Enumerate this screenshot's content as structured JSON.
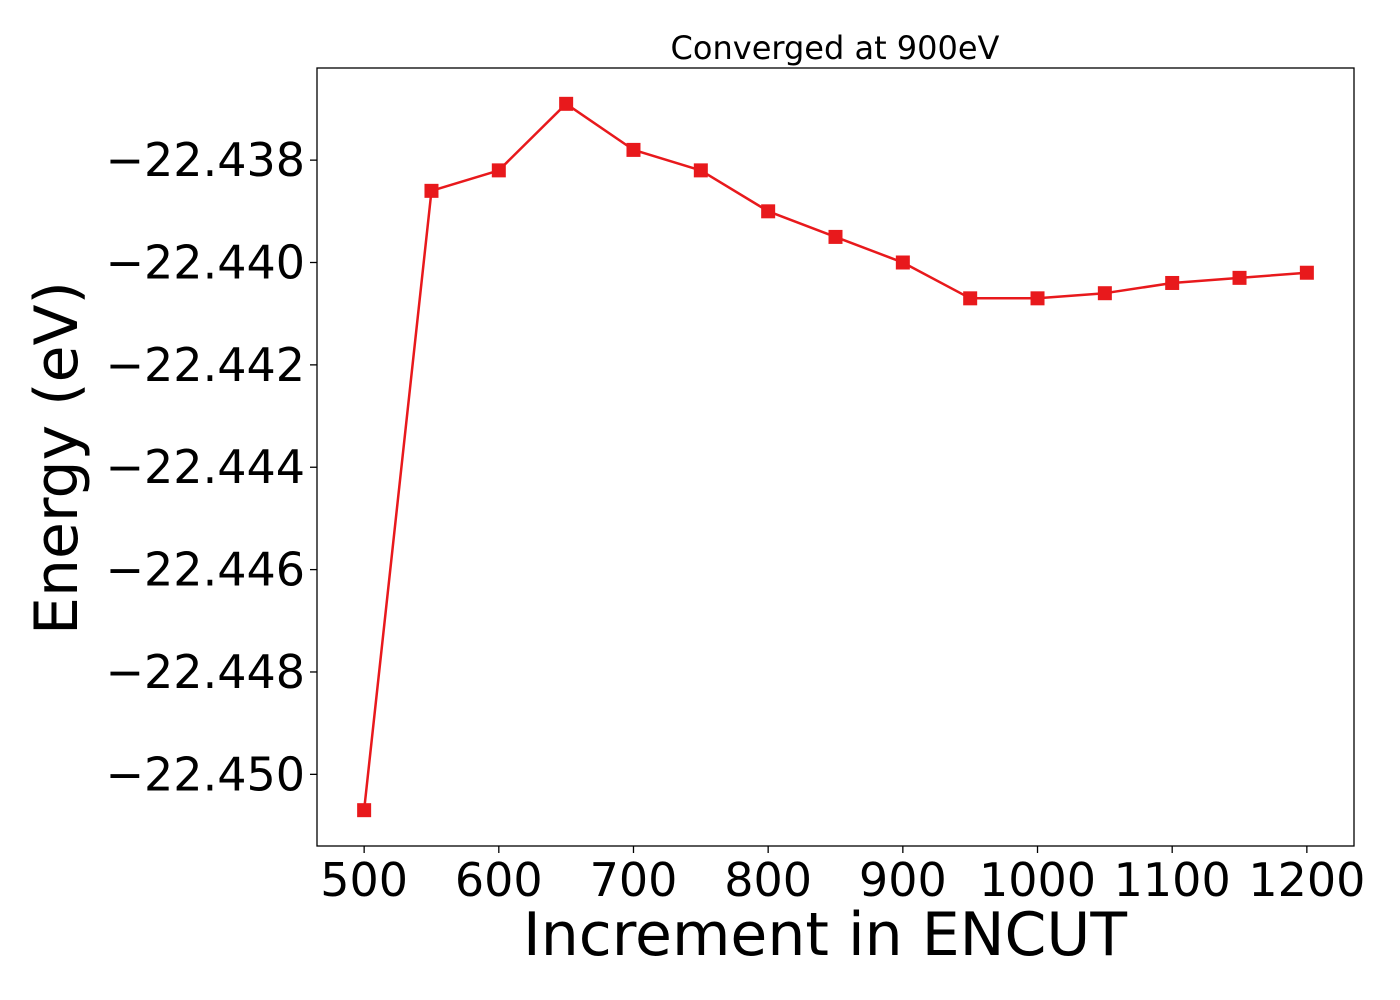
{
  "chart_data": {
    "type": "line",
    "title": "Converged at 900eV",
    "xlabel": "Increment in ENCUT",
    "ylabel": "Energy (eV)",
    "x": [
      500,
      550,
      600,
      650,
      700,
      750,
      800,
      850,
      900,
      950,
      1000,
      1050,
      1100,
      1150,
      1200
    ],
    "series": [
      {
        "values": [
          -22.4507,
          -22.4386,
          -22.4382,
          -22.4369,
          -22.4378,
          -22.4382,
          -22.439,
          -22.4395,
          -22.44,
          -22.4407,
          -22.4407,
          -22.4406,
          -22.4404,
          -22.4403,
          -22.4402
        ],
        "color": "#e8191c",
        "marker": "square"
      }
    ],
    "xticks": [
      "500",
      "600",
      "700",
      "800",
      "900",
      "1000",
      "1100",
      "1200"
    ],
    "xtick_values": [
      500,
      600,
      700,
      800,
      900,
      1000,
      1100,
      1200
    ],
    "yticks": [
      "−22.438",
      "−22.440",
      "−22.442",
      "−22.444",
      "−22.446",
      "−22.448",
      "−22.450"
    ],
    "ytick_values": [
      -22.438,
      -22.44,
      -22.442,
      -22.444,
      -22.446,
      -22.448,
      -22.45
    ],
    "xlim": [
      465,
      1235
    ],
    "ylim": [
      -22.4514,
      -22.4362
    ],
    "grid": false
  }
}
